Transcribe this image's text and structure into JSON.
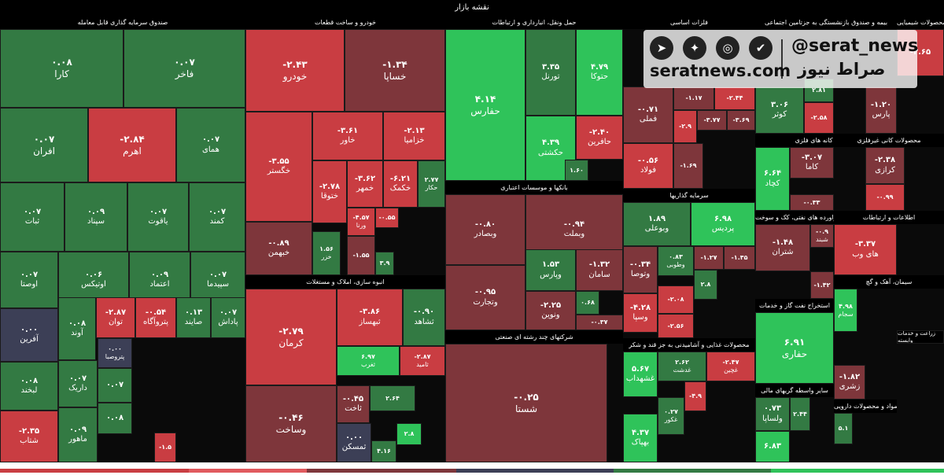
{
  "title": "نقشه بازار",
  "colors": {
    "bright_green": "#2fc35a",
    "green": "#337a43",
    "dark_red": "#7e363b",
    "red": "#c93d42",
    "neutral": "#3c3f56",
    "header": "#000000"
  },
  "watermark": {
    "handle": "@serat_news",
    "site": "seratnews.com",
    "name": "صراط نیوز",
    "icons": [
      "telegram-icon",
      "twitter-icon",
      "instagram-icon",
      "verified-icon"
    ]
  },
  "chart_data": {
    "type": "heatmap",
    "title": "نقشه بازار",
    "sections": [
      {
        "name": "صندوق سرمایه گذاری قابل معامله",
        "tiles": [
          {
            "name": "کارا",
            "value": "۰.۰۸",
            "color": "green"
          },
          {
            "name": "فاخر",
            "value": "۰.۰۷",
            "color": "green"
          },
          {
            "name": "افران",
            "value": "۰.۰۷",
            "color": "green"
          },
          {
            "name": "اهرم",
            "value": "-۲.۸۴",
            "color": "red"
          },
          {
            "name": "همای",
            "value": "۰.۰۷",
            "color": "green"
          },
          {
            "name": "ثبات",
            "value": "۰.۰۷",
            "color": "green"
          },
          {
            "name": "سپناد",
            "value": "۰.۰۹",
            "color": "green"
          },
          {
            "name": "یاقوت",
            "value": "۰.۰۷",
            "color": "green"
          },
          {
            "name": "کمند",
            "value": "۰.۰۷",
            "color": "green"
          },
          {
            "name": "اوصتا",
            "value": "۰.۰۷",
            "color": "green"
          },
          {
            "name": "اوتیکس",
            "value": "۰.۰۶",
            "color": "green"
          },
          {
            "name": "اعتماد",
            "value": "۰.۰۹",
            "color": "green"
          },
          {
            "name": "سپیدما",
            "value": "۰.۰۷",
            "color": "green"
          },
          {
            "name": "آفرین",
            "value": "۰.۰۰",
            "color": "neutral"
          },
          {
            "name": "آوند",
            "value": "۰.۰۸",
            "color": "green"
          },
          {
            "name": "توان",
            "value": "-۲.۸۷",
            "color": "red"
          },
          {
            "name": "پتروآگاه",
            "value": "-۰.۵۴",
            "color": "red"
          },
          {
            "name": "صایند",
            "value": "۰.۱۳",
            "color": "green"
          },
          {
            "name": "پاداش",
            "value": "۰.۰۷",
            "color": "green"
          },
          {
            "name": "لبخند",
            "value": "۰.۰۸",
            "color": "green"
          },
          {
            "name": "داریک",
            "value": "۰.۰۷",
            "color": "green"
          },
          {
            "name": "پتروصبا",
            "value": "۰.۰۰",
            "color": "neutral"
          },
          {
            "name": "شتاب",
            "value": "-۲.۳۵",
            "color": "red"
          },
          {
            "name": "ماهور",
            "value": "۰.۰۹",
            "color": "green"
          },
          {
            "name": "",
            "value": "۰.۰۷",
            "color": "green"
          },
          {
            "name": "",
            "value": "۰.۰۸",
            "color": "green"
          },
          {
            "name": "",
            "value": "-۱.۵",
            "color": "red"
          }
        ]
      },
      {
        "name": "خودرو و ساخت قطعات",
        "tiles": [
          {
            "name": "خودرو",
            "value": "-۲.۴۳",
            "color": "red"
          },
          {
            "name": "خساپا",
            "value": "-۱.۳۴",
            "color": "dark_red"
          },
          {
            "name": "خگستر",
            "value": "-۳.۵۵",
            "color": "red"
          },
          {
            "name": "خاور",
            "value": "-۳.۶۱",
            "color": "red"
          },
          {
            "name": "خزامیا",
            "value": "-۲.۱۳",
            "color": "red"
          },
          {
            "name": "ختوقا",
            "value": "-۲.۷۸",
            "color": "red"
          },
          {
            "name": "خمهر",
            "value": "-۳.۶۲",
            "color": "red"
          },
          {
            "name": "خکمک",
            "value": "-۶.۲۱",
            "color": "red"
          },
          {
            "name": "حکار",
            "value": "۲.۷۷",
            "color": "green"
          },
          {
            "name": "خبهمن",
            "value": "-۰.۸۹",
            "color": "dark_red"
          },
          {
            "name": "خزر",
            "value": "۱.۵۶",
            "color": "green"
          },
          {
            "name": "ورنا",
            "value": "-۴.۵۷",
            "color": "red"
          },
          {
            "name": "",
            "value": "-۰.۵۵",
            "color": "red"
          },
          {
            "name": "",
            "value": "-۱.۵۵",
            "color": "dark_red"
          },
          {
            "name": "",
            "value": "۳.۹",
            "color": "green"
          }
        ]
      },
      {
        "name": "حمل ونقل، انبارداری و ارتباطات",
        "tiles": [
          {
            "name": "حفارس",
            "value": "۴.۱۴",
            "color": "bright_green"
          },
          {
            "name": "تورنل",
            "value": "۳.۳۵",
            "color": "green"
          },
          {
            "name": "حتوکا",
            "value": "۴.۷۹",
            "color": "bright_green"
          },
          {
            "name": "حکشتی",
            "value": "۴.۳۹",
            "color": "bright_green"
          },
          {
            "name": "حافرین",
            "value": "-۲.۴۰",
            "color": "red"
          },
          {
            "name": "",
            "value": "۱.۶۰",
            "color": "green"
          }
        ]
      },
      {
        "name": "فلزات اساسی",
        "tiles": [
          {
            "name": "فملی",
            "value": "-۰.۷۱",
            "color": "dark_red"
          },
          {
            "name": "",
            "value": "-۱.۱۷",
            "color": "dark_red"
          },
          {
            "name": "",
            "value": "-۲.۴۴",
            "color": "red"
          },
          {
            "name": "",
            "value": "-۳.۷۷",
            "color": "dark_red"
          },
          {
            "name": "",
            "value": "-۳.۶۹",
            "color": "dark_red"
          },
          {
            "name": "",
            "value": "-۲.۹",
            "color": "red"
          },
          {
            "name": "فولاد",
            "value": "-۰.۵۶",
            "color": "red"
          },
          {
            "name": "",
            "value": "-۱.۶۹",
            "color": "dark_red"
          }
        ]
      },
      {
        "name": "بیمه و صندوق بازنشستگی به جزتامین اجتماعی",
        "tiles": [
          {
            "name": "کوثر",
            "value": "۳.۰۶",
            "color": "green"
          },
          {
            "name": "",
            "value": "۲.۸۱",
            "color": "green"
          },
          {
            "name": "",
            "value": "-۲.۵۸",
            "color": "red"
          }
        ]
      },
      {
        "name": "محصولات شیمیایی",
        "tiles": [
          {
            "name": "پارس",
            "value": "-۱.۲۰",
            "color": "dark_red"
          },
          {
            "name": "",
            "value": "-۲.۶۵",
            "color": "red"
          }
        ]
      },
      {
        "name": "بانکها و موسسات اعتباری",
        "tiles": [
          {
            "name": "وبصادر",
            "value": "-۰.۸۰",
            "color": "dark_red"
          },
          {
            "name": "وبملت",
            "value": "-۰.۹۴",
            "color": "dark_red"
          },
          {
            "name": "وتجارت",
            "value": "-۰.۹۵",
            "color": "dark_red"
          },
          {
            "name": "وپارس",
            "value": "۱.۵۳",
            "color": "green"
          },
          {
            "name": "سامان",
            "value": "-۱.۳۲",
            "color": "dark_red"
          },
          {
            "name": "ونوین",
            "value": "-۲.۲۵",
            "color": "dark_red"
          },
          {
            "name": "",
            "value": "۰.۶۸",
            "color": "green"
          },
          {
            "name": "",
            "value": "-۰.۳۷",
            "color": "dark_red"
          }
        ]
      },
      {
        "name": "سرمایه گذاریها",
        "tiles": [
          {
            "name": "وبوعلی",
            "value": "۱.۸۹",
            "color": "green"
          },
          {
            "name": "پردیس",
            "value": "۶.۹۸",
            "color": "bright_green"
          },
          {
            "name": "وتوصا",
            "value": "-۰.۳۴",
            "color": "dark_red"
          },
          {
            "name": "وطوبی",
            "value": "۰.۸۳",
            "color": "green"
          },
          {
            "name": "",
            "value": "-۱.۲۷",
            "color": "dark_red"
          },
          {
            "name": "",
            "value": "-۱.۳۵",
            "color": "dark_red"
          },
          {
            "name": "وسپا",
            "value": "-۴.۲۸",
            "color": "red"
          },
          {
            "name": "",
            "value": "-۲.۰۸",
            "color": "red"
          },
          {
            "name": "",
            "value": "-۲.۵۶",
            "color": "red"
          },
          {
            "name": "",
            "value": "۲.۸",
            "color": "green"
          }
        ]
      },
      {
        "name": "انبوه سازی، املاک و مستغلات",
        "tiles": [
          {
            "name": "کرمان",
            "value": "-۲.۷۹",
            "color": "red"
          },
          {
            "name": "ثبهساز",
            "value": "-۳.۸۶",
            "color": "red"
          },
          {
            "name": "ثشاهد",
            "value": "-۰.۹۰",
            "color": "green"
          },
          {
            "name": "ثغرب",
            "value": "۶.۹۷",
            "color": "bright_green"
          },
          {
            "name": "ثامید",
            "value": "-۲.۸۷",
            "color": "red"
          },
          {
            "name": "وساخت",
            "value": "-۰.۴۶",
            "color": "dark_red"
          },
          {
            "name": "ثاخت",
            "value": "-۰.۴۵",
            "color": "dark_red"
          },
          {
            "name": "",
            "value": "۲.۶۴",
            "color": "green"
          },
          {
            "name": "ثمسکن",
            "value": "۰.۰۰",
            "color": "neutral"
          },
          {
            "name": "",
            "value": "۲.۸",
            "color": "bright_green"
          },
          {
            "name": "",
            "value": "۴.۱۶",
            "color": "green"
          }
        ]
      },
      {
        "name": "شرکتهای چند رشته ای صنعتی",
        "tiles": [
          {
            "name": "شستا",
            "value": "-۰.۲۵",
            "color": "dark_red"
          }
        ]
      },
      {
        "name": "محصولات غذایی و آشامیدنی به جز قند و شکر",
        "tiles": [
          {
            "name": "غشهداب",
            "value": "۵.۶۷",
            "color": "bright_green"
          },
          {
            "name": "غدشت",
            "value": "۲.۶۲",
            "color": "green"
          },
          {
            "name": "غچین",
            "value": "-۲.۴۷",
            "color": "red"
          },
          {
            "name": "غکور",
            "value": "۰.۲۷",
            "color": "green"
          },
          {
            "name": "بهپاک",
            "value": "۴.۳۷",
            "color": "bright_green"
          },
          {
            "name": "",
            "value": "-۴.۹",
            "color": "red"
          }
        ]
      },
      {
        "name": "استخراج کانه های فلزی",
        "tiles": [
          {
            "name": "کچاد",
            "value": "۶.۶۴",
            "color": "bright_green"
          },
          {
            "name": "کاما",
            "value": "-۳.۰۷",
            "color": "dark_red"
          },
          {
            "name": "",
            "value": "-۰.۳۳",
            "color": "dark_red"
          }
        ]
      },
      {
        "name": "محصولات کانی غیرفلزی",
        "tiles": [
          {
            "name": "کرازی",
            "value": "-۲.۳۸",
            "color": "dark_red"
          },
          {
            "name": "",
            "value": "-۰.۹۹",
            "color": "red"
          }
        ]
      },
      {
        "name": "فراورده های نفتی، کک و سوخت",
        "tiles": [
          {
            "name": "شتران",
            "value": "-۱.۴۸",
            "color": "dark_red"
          },
          {
            "name": "شبند",
            "value": "-۰.۹",
            "color": "dark_red"
          },
          {
            "name": "",
            "value": "-۱.۴۲",
            "color": "dark_red"
          }
        ]
      },
      {
        "name": "اطلاعات و ارتباطات",
        "tiles": [
          {
            "name": "های وب",
            "value": "-۳.۳۷",
            "color": "red"
          }
        ]
      },
      {
        "name": "استخراج نفت گاز و خدمات",
        "tiles": [
          {
            "name": "حفاری",
            "value": "۶.۹۱",
            "color": "bright_green"
          },
          {
            "name": "سجام",
            "value": "۴.۹۸",
            "color": "bright_green"
          }
        ]
      },
      {
        "name": "سیمان، آهک و گچ",
        "tiles": [
          {
            "name": "زراعت و خدمات وابسته",
            "value": "",
            "color": "header"
          },
          {
            "name": "زشری",
            "value": "-۱.۸۲",
            "color": "dark_red"
          }
        ]
      },
      {
        "name": "سایر واسطه گریهای مالی",
        "tiles": [
          {
            "name": "ولساپا",
            "value": "۰.۷۳",
            "color": "green"
          },
          {
            "name": "",
            "value": "۲.۴۴",
            "color": "green"
          },
          {
            "name": "",
            "value": "۶.۸۳",
            "color": "bright_green"
          }
        ]
      },
      {
        "name": "مواد و محصولات دارویی",
        "tiles": [
          {
            "name": "",
            "value": "۵.۱",
            "color": "green"
          }
        ]
      }
    ]
  }
}
